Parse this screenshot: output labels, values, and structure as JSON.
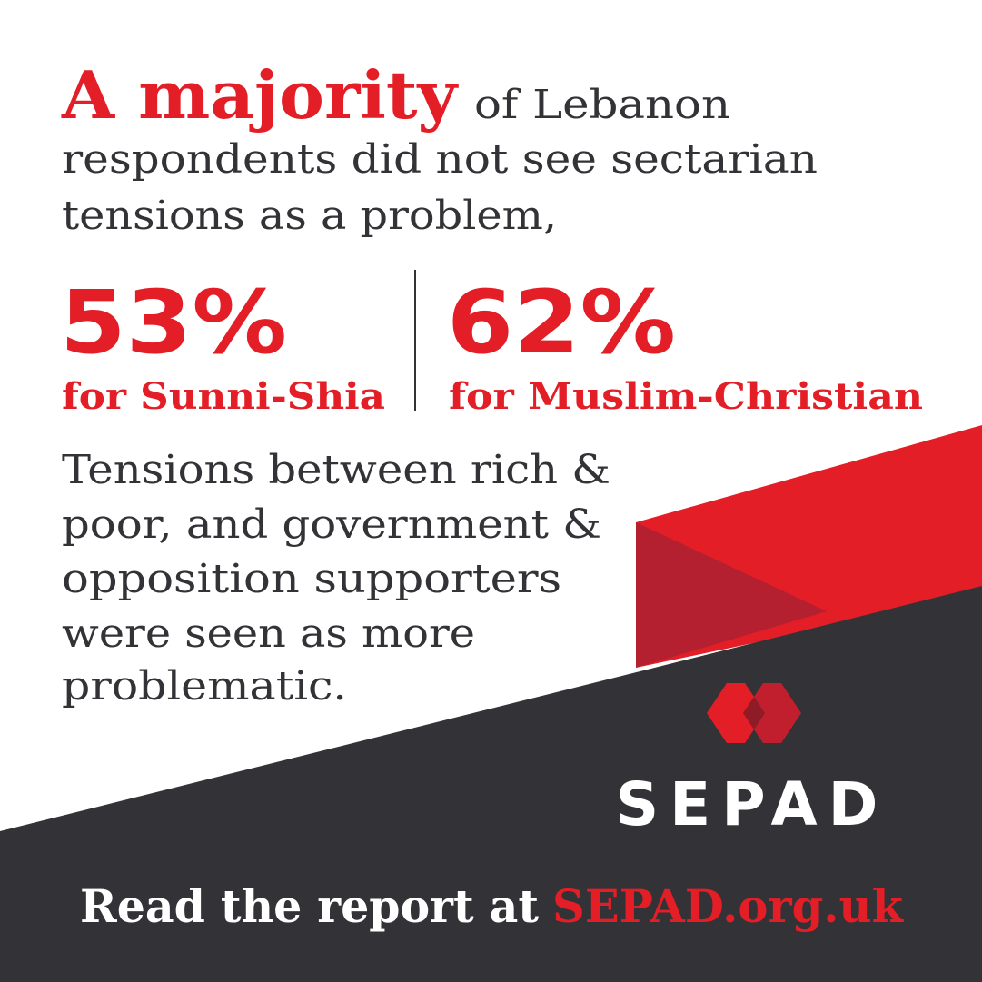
{
  "headline": {
    "emphasis": "A majority",
    "lines": [
      "of Lebanon",
      "respondents did not see sectarian",
      "tensions as a problem,"
    ]
  },
  "stats": [
    {
      "figure": "53%",
      "label": "for Sunni-Shia"
    },
    {
      "figure": "62%",
      "label": "for Muslim-Christian"
    }
  ],
  "body": [
    "Tensions between rich &",
    "poor, and government &",
    "opposition supporters",
    "were seen as more",
    "problematic."
  ],
  "logo": "SEPAD",
  "footer": {
    "text": "Read the report at",
    "link": "SEPAD.org.uk"
  }
}
